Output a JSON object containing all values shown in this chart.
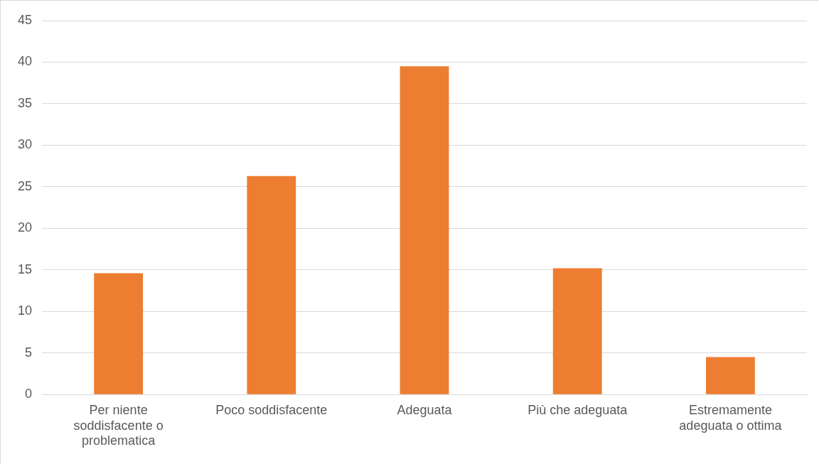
{
  "chart_data": {
    "type": "bar",
    "categories": [
      "Per niente soddisfacente o problematica",
      "Poco soddisfacente",
      "Adeguata",
      "Più che adeguata",
      "Estremamente adeguata o ottima"
    ],
    "values": [
      14.6,
      26.3,
      39.5,
      15.2,
      4.5
    ],
    "color": "#ed7d31",
    "ylim": [
      0,
      45
    ],
    "yticks": [
      0,
      5,
      10,
      15,
      20,
      25,
      30,
      35,
      40,
      45
    ],
    "grid": "y",
    "legend": false
  }
}
